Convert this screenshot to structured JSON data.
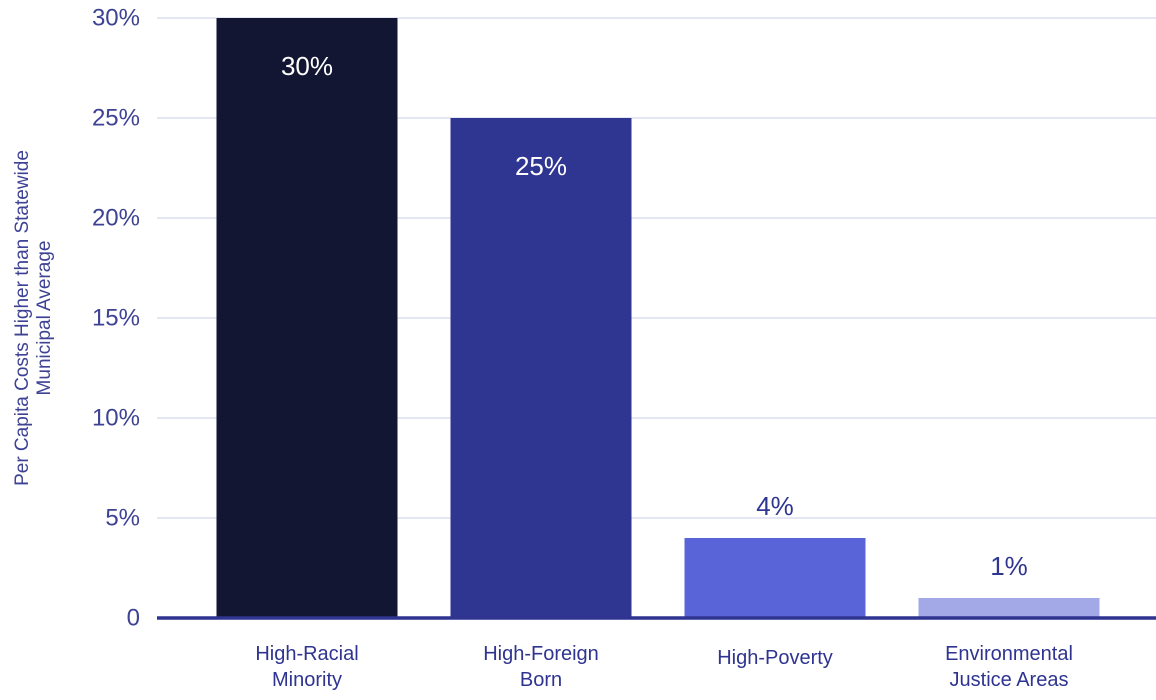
{
  "chart_data": {
    "type": "bar",
    "title": "",
    "xlabel": "",
    "ylabel": [
      "Per Capita Costs Higher than Statewide",
      "Municipal Average"
    ],
    "ylim": [
      0,
      30
    ],
    "yticks": [
      {
        "value": 0,
        "label": "0"
      },
      {
        "value": 5,
        "label": "5%"
      },
      {
        "value": 10,
        "label": "10%"
      },
      {
        "value": 15,
        "label": "15%"
      },
      {
        "value": 20,
        "label": "20%"
      },
      {
        "value": 25,
        "label": "25%"
      },
      {
        "value": 30,
        "label": "30%"
      }
    ],
    "categories": [
      [
        "High-Racial",
        "Minority"
      ],
      [
        "High-Foreign",
        "Born"
      ],
      [
        "High-Poverty"
      ],
      [
        "Environmental",
        "Justice Areas"
      ]
    ],
    "values": [
      30,
      25,
      4,
      1
    ],
    "data_labels": [
      "30%",
      "25%",
      "4%",
      "1%"
    ],
    "colors": [
      "#131633",
      "#2f3691",
      "#5a64d9",
      "#a3a8e6"
    ],
    "label_colors": [
      "#ffffff",
      "#ffffff",
      "#2f3691",
      "#2f3691"
    ],
    "grid": true,
    "legend": "none"
  }
}
